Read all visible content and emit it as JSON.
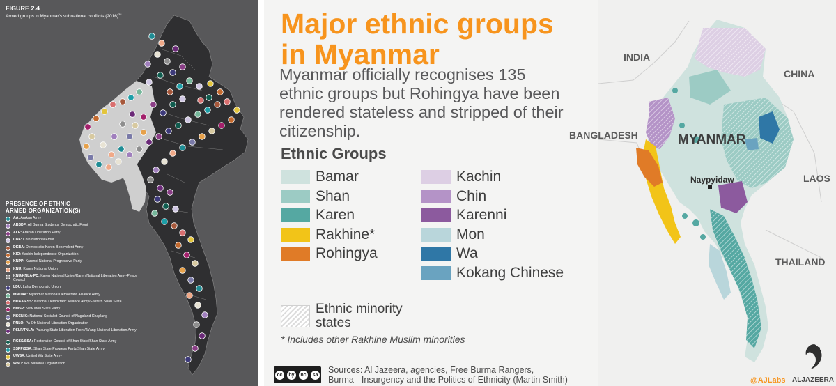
{
  "left_panel": {
    "figure_label": "FIGURE 2.4",
    "figure_subtitle": "Armed groups in Myanmar's subnational conflicts (2016)",
    "figure_subtitle_ref": "38",
    "legend_title_1": "PRESENCE OF ETHNIC",
    "legend_title_2": "ARMED ORGANIZATION(S)",
    "organizations": [
      {
        "abbr": "AA:",
        "name": "Arakan Army",
        "color": "#1f8c94"
      },
      {
        "abbr": "ABSDF:",
        "name": "All Burma Students' Democratic Front",
        "color": "#a07fbd"
      },
      {
        "abbr": "ALP:",
        "name": "Arakan Liberation Party",
        "color": "#8a3e86"
      },
      {
        "abbr": "CNF:",
        "name": "Chin National Front",
        "color": "#cfc6e3"
      },
      {
        "abbr": "DKBA:",
        "name": "Democratic Karen Benevolent Army",
        "color": "#a7583b"
      },
      {
        "abbr": "KIO:",
        "name": "Kachin Independence Organization",
        "color": "#c46a2e"
      },
      {
        "abbr": "KNPP:",
        "name": "Karenni National Progressive Party",
        "color": "#e6a14b"
      },
      {
        "abbr": "KNU:",
        "name": "Karen National Union",
        "color": "#f0a988"
      },
      {
        "abbr": "KNU/KNLA-PC:",
        "name": "Karen National Union/Karen National Liberation Army-Peace Council",
        "color": "#8e8e8e"
      },
      {
        "abbr": "LDU:",
        "name": "Lahu Democratic Union",
        "color": "#3d3a7a"
      },
      {
        "abbr": "MNDAA:",
        "name": "Myanmar National Democratic Alliance Army",
        "color": "#76b79b"
      },
      {
        "abbr": "NDAA ESS:",
        "name": "National Democratic Alliance Army/Eastern Shan State",
        "color": "#d96f6f"
      },
      {
        "abbr": "NMSP:",
        "name": "New Mon State Party",
        "color": "#a3206b"
      },
      {
        "abbr": "NSCN-K:",
        "name": "National Socialist Council of Nagaland-Khaplang",
        "color": "#7a7aa8"
      },
      {
        "abbr": "PNLO:",
        "name": "Pa-Oh National Liberation Organization",
        "color": "#e8e3d4"
      },
      {
        "abbr": "PSLF/TNLA:",
        "name": "Palaung State Liberation Front/Ta'ang National Liberation Army",
        "color": "#6b2a78"
      },
      {
        "abbr": "RCSS/SSA:",
        "name": "Restoration Council of Shan State/Shan State Army",
        "color": "#0f5c4e"
      },
      {
        "abbr": "SSPP/SSA:",
        "name": "Shan State Progress Party/Shan State Army",
        "color": "#1d9fa8"
      },
      {
        "abbr": "UWSA:",
        "name": "United Wa State Army",
        "color": "#e3c53c"
      },
      {
        "abbr": "WNO:",
        "name": "Wa National Organization",
        "color": "#d7c9a0"
      }
    ]
  },
  "right_panel": {
    "title_line1": "Major ethnic groups",
    "title_line2": "in Myanmar",
    "subtitle": "Myanmar officially recognises 135 ethnic groups but Rohingya have been rendered stateless and stripped of their citizenship.",
    "legend_title": "Ethnic Groups",
    "groups_col1": [
      {
        "label": "Bamar",
        "color": "#cfe2de"
      },
      {
        "label": "Shan",
        "color": "#9ccbc4"
      },
      {
        "label": "Karen",
        "color": "#55a8a2"
      },
      {
        "label": "Rakhine*",
        "color": "#f2c418"
      },
      {
        "label": "Rohingya",
        "color": "#e07b27"
      }
    ],
    "groups_col2": [
      {
        "label": "Kachin",
        "color": "#ddcfe4"
      },
      {
        "label": "Chin",
        "color": "#b493c7"
      },
      {
        "label": "Karenni",
        "color": "#8c5a9e"
      },
      {
        "label": "Mon",
        "color": "#b9d6db"
      },
      {
        "label": "Wa",
        "color": "#2f77a6"
      },
      {
        "label": "Kokang Chinese",
        "color": "#6aa3c0"
      }
    ],
    "minority_label": "Ethnic minority states",
    "footnote": "* Includes other Rakhine Muslim minorities",
    "cc_icons": [
      "cc",
      "by",
      "nc",
      "sa"
    ],
    "sources_line1": "Sources: Al Jazeera, agencies, Free Burma Rangers,",
    "sources_line2": "Burma - Insurgency and the Politics of Ethnicity (Martin Smith)",
    "countries": {
      "india": "INDIA",
      "china": "CHINA",
      "bangladesh": "BANGLADESH",
      "laos": "LAOS",
      "thailand": "THAILAND"
    },
    "country_label": "MYANMAR",
    "capital": "Naypyidaw",
    "credit_labs": "@AJLabs",
    "credit_brand": "ALJAZEERA"
  }
}
